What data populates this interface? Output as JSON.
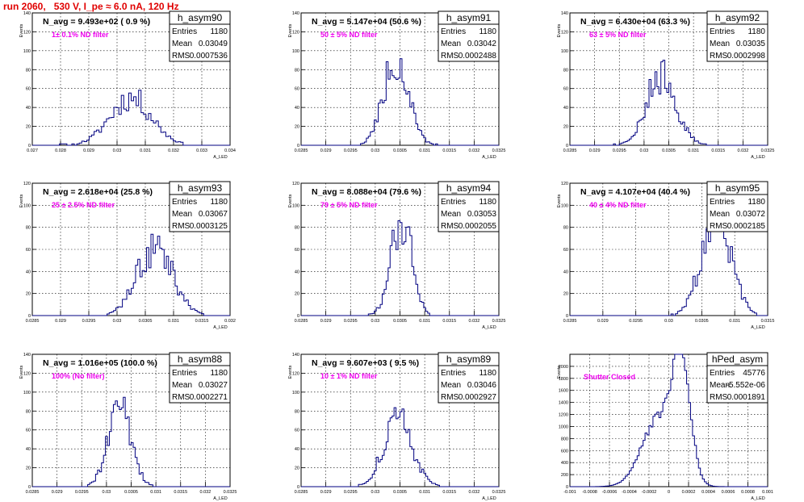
{
  "header": {
    "title": "run 2060,   530 V, I_pe ≈ 6.0 nA, 120 Hz"
  },
  "y_axis_label": "Events",
  "x_axis_label": "A_LED",
  "stat_labels": {
    "entries": "Entries",
    "mean": "Mean",
    "rms": "RMS"
  },
  "chart_data": [
    {
      "type": "bar",
      "name": "h_asym90",
      "navg": "N_avg = 9.493e+02 ( 0.9 %)",
      "filter": "1± 0.1% ND filter",
      "stats": {
        "entries": "1180",
        "mean": "0.03049",
        "rms": "0.0007536"
      },
      "xlim": [
        0.027,
        0.034
      ],
      "ylim": [
        0,
        140
      ],
      "xticks": [
        "0.027",
        "0.028",
        "0.029",
        "0.03",
        "0.031",
        "0.032",
        "0.033",
        "0.034"
      ],
      "yticks": [
        "0",
        "20",
        "40",
        "60",
        "80",
        "100",
        "120",
        "140"
      ],
      "hist": {
        "mean": 0.03049,
        "sigma": 0.00074,
        "peak": 50,
        "bins": 80,
        "seed": 11
      }
    },
    {
      "type": "bar",
      "name": "h_asym91",
      "navg": "N_avg = 5.147e+04 (50.6 %)",
      "filter": "50 ± 5% ND filter",
      "stats": {
        "entries": "1180",
        "mean": "0.03042",
        "rms": "0.0002488"
      },
      "xlim": [
        0.0285,
        0.0325
      ],
      "ylim": [
        0,
        140
      ],
      "xticks": [
        "0.0285",
        "0.029",
        "0.0295",
        "0.03",
        "0.0305",
        "0.031",
        "0.0315",
        "0.032",
        "0.0325"
      ],
      "yticks": [
        "0",
        "20",
        "40",
        "60",
        "80",
        "100",
        "120",
        "140"
      ],
      "hist": {
        "mean": 0.03042,
        "sigma": 0.00025,
        "peak": 92,
        "bins": 100,
        "seed": 22
      }
    },
    {
      "type": "bar",
      "name": "h_asym92",
      "navg": "N_avg = 6.430e+04 (63.3 %)",
      "filter": "63 ± 5% ND filter",
      "stats": {
        "entries": "1180",
        "mean": "0.03035",
        "rms": "0.0002998"
      },
      "xlim": [
        0.0285,
        0.0325
      ],
      "ylim": [
        0,
        140
      ],
      "xticks": [
        "0.0285",
        "0.029",
        "0.0295",
        "0.03",
        "0.0305",
        "0.031",
        "0.0315",
        "0.032",
        "0.0325"
      ],
      "yticks": [
        "0",
        "20",
        "40",
        "60",
        "80",
        "100",
        "120",
        "140"
      ],
      "hist": {
        "mean": 0.03035,
        "sigma": 0.0003,
        "peak": 73,
        "bins": 100,
        "seed": 33
      }
    },
    {
      "type": "bar",
      "name": "h_asym93",
      "navg": "N_avg = 2.618e+04 (25.8 %)",
      "filter": "25 ± 2.5% ND filter",
      "stats": {
        "entries": "1180",
        "mean": "0.03067",
        "rms": "0.0003125"
      },
      "xlim": [
        0.0285,
        0.032
      ],
      "ylim": [
        0,
        120
      ],
      "xticks": [
        "0.0285",
        "0.029",
        "0.0295",
        "0.03",
        "0.0305",
        "0.031",
        "0.0315",
        "0.032"
      ],
      "yticks": [
        "0",
        "20",
        "40",
        "60",
        "80",
        "100",
        "120"
      ],
      "hist": {
        "mean": 0.03067,
        "sigma": 0.00031,
        "peak": 62,
        "bins": 90,
        "seed": 44
      }
    },
    {
      "type": "bar",
      "name": "h_asym94",
      "navg": "N_avg = 8.088e+04 (79.6 %)",
      "filter": "79 ± 5% ND filter",
      "stats": {
        "entries": "1180",
        "mean": "0.03053",
        "rms": "0.0002055"
      },
      "xlim": [
        0.0285,
        0.0325
      ],
      "ylim": [
        0,
        120
      ],
      "xticks": [
        "0.0285",
        "0.029",
        "0.0295",
        "0.03",
        "0.0305",
        "0.031",
        "0.0315",
        "0.032",
        "0.0325"
      ],
      "yticks": [
        "0",
        "20",
        "40",
        "60",
        "80",
        "100",
        "120"
      ],
      "hist": {
        "mean": 0.03053,
        "sigma": 0.00021,
        "peak": 90,
        "bins": 100,
        "seed": 55
      }
    },
    {
      "type": "bar",
      "name": "h_asym95",
      "navg": "N_avg = 4.107e+04 (40.4 %)",
      "filter": "40 ± 4% ND filter",
      "stats": {
        "entries": "1180",
        "mean": "0.03072",
        "rms": "0.0002185"
      },
      "xlim": [
        0.0285,
        0.0315
      ],
      "ylim": [
        0,
        120
      ],
      "xticks": [
        "0.0285",
        "0.029",
        "0.0295",
        "0.03",
        "0.0305",
        "0.031",
        "0.0315"
      ],
      "yticks": [
        "0",
        "20",
        "40",
        "60",
        "80",
        "100",
        "120"
      ],
      "hist": {
        "mean": 0.03072,
        "sigma": 0.00022,
        "peak": 90,
        "bins": 90,
        "seed": 66
      }
    },
    {
      "type": "bar",
      "name": "h_asym88",
      "navg": "N_avg = 1.016e+05 (100.0 %)",
      "filter": "100% (No filter)",
      "stats": {
        "entries": "1180",
        "mean": "0.03027",
        "rms": "0.0002271"
      },
      "xlim": [
        0.0285,
        0.0325
      ],
      "ylim": [
        0,
        140
      ],
      "xticks": [
        "0.0285",
        "0.029",
        "0.0295",
        "0.03",
        "0.0305",
        "0.031",
        "0.0315",
        "0.032",
        "0.0325"
      ],
      "yticks": [
        "0",
        "20",
        "40",
        "60",
        "80",
        "100",
        "120",
        "140"
      ],
      "hist": {
        "mean": 0.03027,
        "sigma": 0.00023,
        "peak": 84,
        "bins": 100,
        "seed": 77
      }
    },
    {
      "type": "bar",
      "name": "h_asym89",
      "navg": "N_avg = 9.607e+03 ( 9.5 %)",
      "filter": "10 ± 1% ND filter",
      "stats": {
        "entries": "1180",
        "mean": "0.03046",
        "rms": "0.0002927"
      },
      "xlim": [
        0.0285,
        0.0325
      ],
      "ylim": [
        0,
        140
      ],
      "xticks": [
        "0.0285",
        "0.029",
        "0.0295",
        "0.03",
        "0.0305",
        "0.031",
        "0.0315",
        "0.032",
        "0.0325"
      ],
      "yticks": [
        "0",
        "20",
        "40",
        "60",
        "80",
        "100",
        "120",
        "140"
      ],
      "hist": {
        "mean": 0.03046,
        "sigma": 0.00029,
        "peak": 70,
        "bins": 100,
        "seed": 88
      }
    },
    {
      "type": "bar",
      "name": "hPed_asym",
      "navg": "",
      "filter": "Shutter Closed",
      "stats": {
        "entries": "45776",
        "mean": "-5.552e-06",
        "rms": "0.0001891"
      },
      "xlim": [
        -0.001,
        0.001
      ],
      "ylim": [
        0,
        2200
      ],
      "xticks": [
        "-0.001",
        "-0.0008",
        "-0.0006",
        "-0.0004",
        "-0.0002",
        "0",
        "0.0002",
        "0.0004",
        "0.0006",
        "0.0008",
        "0.001"
      ],
      "yticks": [
        "0",
        "200",
        "400",
        "600",
        "800",
        "1000",
        "1200",
        "1400",
        "1600",
        "1800",
        "2000"
      ],
      "hist": {
        "mean": -5e-06,
        "sigma": 0.00019,
        "peak": 2050,
        "bins": 100,
        "seed": 99,
        "ped": true
      }
    }
  ]
}
